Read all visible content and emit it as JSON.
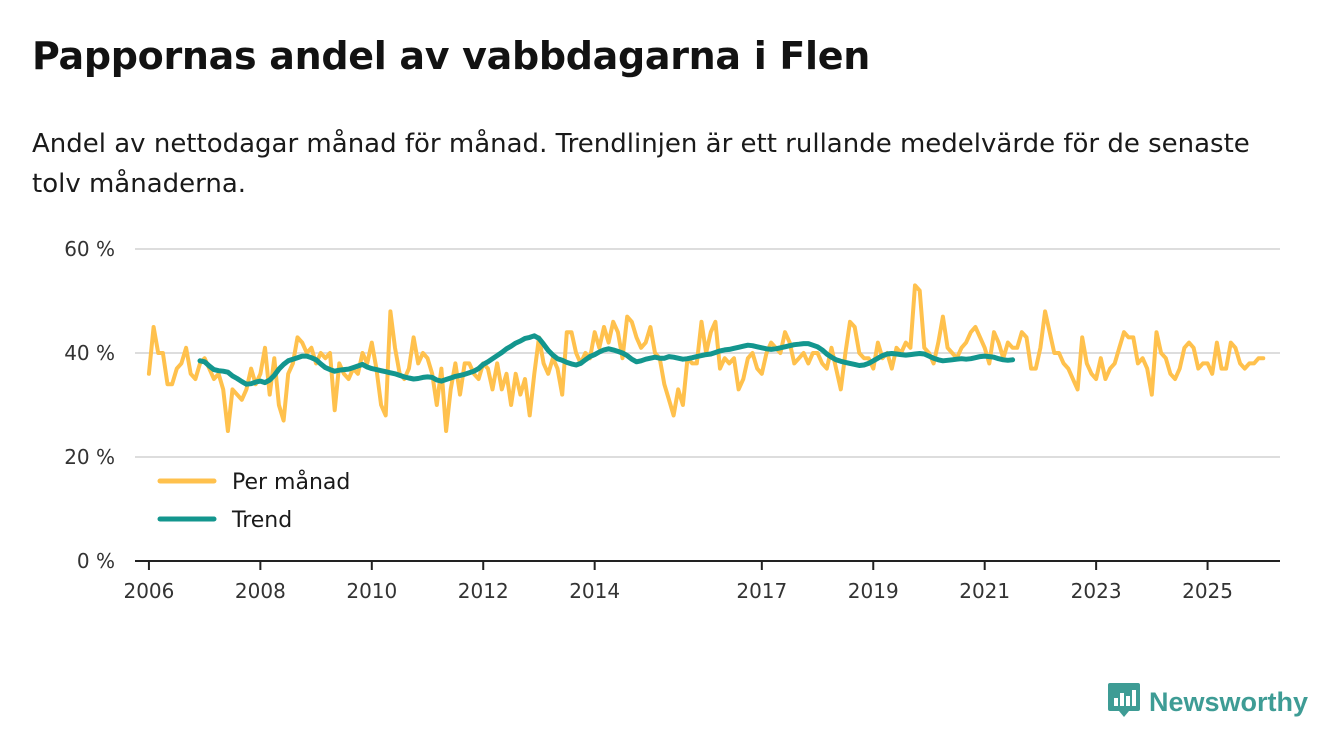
{
  "title": "Pappornas andel av vabbdagarna i Flen",
  "subtitle": "Andel av nettodagar månad för månad. Trendlinjen är ett rullande medelvärde för de senaste tolv månaderna.",
  "brand": {
    "name": "Newsworthy",
    "icon": "newsworthy-chart-bubble-icon",
    "color": "#3e9c95"
  },
  "chart_data": {
    "type": "line",
    "title": "Pappornas andel av vabbdagarna i Flen",
    "xlabel": "",
    "ylabel": "",
    "xlim": [
      2005.75,
      2026.3
    ],
    "ylim": [
      0,
      60
    ],
    "yticks": [
      0,
      20,
      40,
      60
    ],
    "ytick_labels": [
      "0 %",
      "20 %",
      "40 %",
      "60 %"
    ],
    "xticks": [
      2006,
      2008,
      2010,
      2012,
      2014,
      2017,
      2019,
      2021,
      2023,
      2025
    ],
    "xtick_labels": [
      "2006",
      "2008",
      "2010",
      "2012",
      "2014",
      "2017",
      "2019",
      "2021",
      "2023",
      "2025"
    ],
    "grid": true,
    "legend_position": "bottom-left",
    "colors": {
      "monthly": "#ffc14d",
      "trend": "#13968e",
      "grid": "#dddddd",
      "axis": "#222222"
    },
    "series": [
      {
        "name": "Per månad",
        "key": "monthly",
        "start": [
          2006,
          1
        ],
        "values": [
          36,
          45,
          40,
          40,
          34,
          34,
          37,
          38,
          41,
          36,
          35,
          38,
          39,
          37,
          35,
          36,
          33,
          25,
          33,
          32,
          31,
          33,
          37,
          34,
          36,
          41,
          32,
          39,
          30,
          27,
          36,
          38,
          43,
          42,
          40,
          41,
          38,
          40,
          39,
          40,
          29,
          38,
          36,
          35,
          37,
          36,
          40,
          38,
          42,
          37,
          30,
          28,
          48,
          41,
          36,
          35,
          37,
          43,
          38,
          40,
          39,
          36,
          30,
          37,
          25,
          33,
          38,
          32,
          38,
          38,
          36,
          35,
          38,
          37,
          33,
          38,
          33,
          36,
          30,
          36,
          32,
          35,
          28,
          36,
          43,
          38,
          36,
          39,
          37,
          32,
          44,
          44,
          40,
          38,
          40,
          39,
          44,
          41,
          45,
          42,
          46,
          44,
          39,
          47,
          46,
          43,
          41,
          42,
          45,
          40,
          39,
          34,
          31,
          28,
          33,
          30,
          39,
          38,
          38,
          46,
          40,
          44,
          46,
          37,
          39,
          38,
          39,
          33,
          35,
          39,
          40,
          37,
          36,
          40,
          42,
          41,
          40,
          44,
          42,
          38,
          39,
          40,
          38,
          40,
          40,
          38,
          37,
          41,
          37,
          33,
          40,
          46,
          45,
          40,
          39,
          39,
          37,
          42,
          39,
          40,
          37,
          41,
          40,
          42,
          41,
          53,
          52,
          41,
          40,
          38,
          42,
          47,
          41,
          40,
          39,
          41,
          42,
          44,
          45,
          43,
          41,
          38,
          44,
          42,
          39,
          42,
          41,
          41,
          44,
          43,
          37,
          37,
          41,
          48,
          44,
          40,
          40,
          38,
          37,
          35,
          33,
          43,
          38,
          36,
          35,
          39,
          35,
          37,
          38,
          41,
          44,
          43,
          43,
          38,
          39,
          37,
          32,
          44,
          40,
          39,
          36,
          35,
          37,
          41,
          42,
          41,
          37,
          38,
          38,
          36,
          42,
          37,
          37,
          42,
          41,
          38,
          37,
          38,
          38,
          39,
          39
        ]
      },
      {
        "name": "Trend",
        "key": "trend",
        "start": [
          2006,
          12
        ],
        "values": [
          38.5,
          38.3,
          37.5,
          36.8,
          36.6,
          36.5,
          36.3,
          35.6,
          35.1,
          34.5,
          34.0,
          34.1,
          34.4,
          34.6,
          34.3,
          34.8,
          35.7,
          36.9,
          37.8,
          38.5,
          38.8,
          39.1,
          39.4,
          39.4,
          39.1,
          38.7,
          37.9,
          37.2,
          36.8,
          36.5,
          36.7,
          36.8,
          36.9,
          37.2,
          37.5,
          37.8,
          37.3,
          37.0,
          36.8,
          36.6,
          36.4,
          36.2,
          36.0,
          35.7,
          35.4,
          35.2,
          35.0,
          35.1,
          35.3,
          35.4,
          35.3,
          34.8,
          34.6,
          34.9,
          35.2,
          35.5,
          35.7,
          35.9,
          36.2,
          36.5,
          37.0,
          37.8,
          38.3,
          38.9,
          39.5,
          40.1,
          40.8,
          41.3,
          41.9,
          42.3,
          42.8,
          43.0,
          43.3,
          42.8,
          41.7,
          40.5,
          39.6,
          38.9,
          38.6,
          38.2,
          37.9,
          37.7,
          38.0,
          38.7,
          39.3,
          39.7,
          40.2,
          40.6,
          40.8,
          40.6,
          40.3,
          40.0,
          39.5,
          38.8,
          38.3,
          38.5,
          38.8,
          39.0,
          39.2,
          39.0,
          39.0,
          39.3,
          39.2,
          39.0,
          38.8,
          38.9,
          39.1,
          39.3,
          39.5,
          39.7,
          39.8,
          40.1,
          40.4,
          40.6,
          40.7,
          40.9,
          41.1,
          41.3,
          41.5,
          41.4,
          41.2,
          41.0,
          40.8,
          40.7,
          40.8,
          41.0,
          41.2,
          41.4,
          41.6,
          41.7,
          41.8,
          41.8,
          41.5,
          41.2,
          40.6,
          39.8,
          39.2,
          38.7,
          38.4,
          38.2,
          38.0,
          37.8,
          37.6,
          37.7,
          38.0,
          38.5,
          39.0,
          39.5,
          39.8,
          39.9,
          39.8,
          39.7,
          39.6,
          39.7,
          39.8,
          39.9,
          39.8,
          39.4,
          39.0,
          38.7,
          38.5,
          38.6,
          38.7,
          38.8,
          38.9,
          38.8,
          38.9,
          39.1,
          39.3,
          39.4,
          39.3,
          39.2,
          38.9,
          38.7,
          38.6,
          38.7
        ]
      }
    ]
  }
}
